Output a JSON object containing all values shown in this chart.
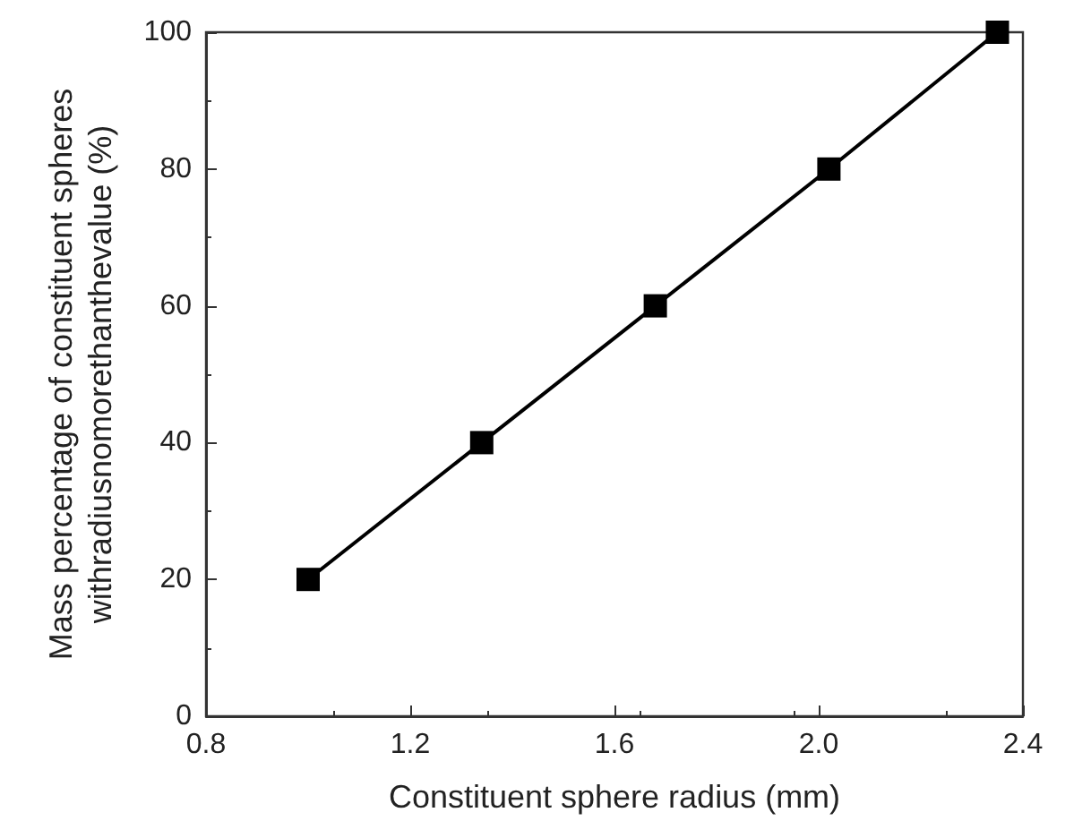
{
  "chart_data": {
    "type": "line",
    "xlabel": "Constituent sphere radius (mm)",
    "ylabel": "Mass percentage of constituent spheres\nwithradiusnomorethanthevalue (%)",
    "x": [
      1.0,
      1.34,
      1.68,
      2.02,
      2.35
    ],
    "series": [
      {
        "color": "#000000",
        "values": [
          20,
          40,
          60,
          80,
          100
        ]
      }
    ],
    "xlim": [
      0.8,
      2.4
    ],
    "xticks": [
      0.8,
      1.2,
      1.6,
      {
        "value": 2.0,
        "label": "2.0"
      },
      2.4
    ],
    "ylim": [
      0,
      100
    ],
    "yticks": [
      0,
      20,
      40,
      60,
      80,
      100
    ],
    "marker": "square",
    "line_style": "solid",
    "grid": false
  }
}
